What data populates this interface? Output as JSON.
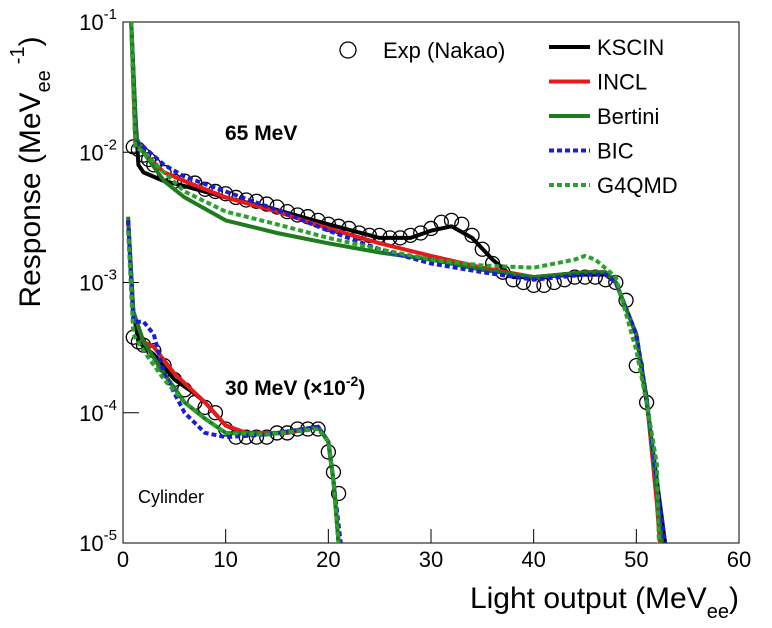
{
  "chart_data": {
    "type": "line",
    "log_y": true,
    "xlim": [
      0,
      60
    ],
    "xticks": [
      0,
      10,
      20,
      30,
      40,
      50,
      60
    ],
    "ylim": [
      1e-05,
      0.1
    ],
    "yticks": [
      {
        "value": 1e-05,
        "label": "10",
        "exponent": "-5"
      },
      {
        "value": 0.0001,
        "label": "10",
        "exponent": "-4"
      },
      {
        "value": 0.001,
        "label": "10",
        "exponent": "-3"
      },
      {
        "value": 0.01,
        "label": "10",
        "exponent": "-2"
      },
      {
        "value": 0.1,
        "label": "10",
        "exponent": "-1"
      }
    ],
    "x_label": {
      "text": "Light output (MeV",
      "sub": "ee",
      "end": ")"
    },
    "y_label": {
      "text": "Response (MeV",
      "sub": "ee",
      "sup": "-1",
      "end": ")"
    },
    "legend_position": "top-right",
    "annotation": "Cylinder",
    "styles": [
      {
        "name": "Exp (Nakao)",
        "marker": "circle",
        "color": "#000000"
      },
      {
        "name": "KSCIN",
        "color": "#000000",
        "dash": "solid"
      },
      {
        "name": "INCL",
        "color": "#e8191b",
        "dash": "solid"
      },
      {
        "name": "Bertini",
        "color": "#1e7b1e",
        "dash": "solid"
      },
      {
        "name": "BIC",
        "color": "#1c1cd8",
        "dash": "dotted"
      },
      {
        "name": "G4QMD",
        "color": "#2ca02c",
        "dash": "dotted"
      }
    ],
    "groups": [
      {
        "annotation": {
          "text": "65 MeV"
        },
        "series": [
          {
            "x": [
              1,
              1.5,
              2,
              2.5,
              3,
              4,
              5,
              6,
              7,
              8,
              9,
              10,
              11,
              12,
              13,
              14,
              15,
              16,
              17,
              18,
              19,
              20,
              21,
              22,
              23,
              24,
              25,
              26,
              27,
              28,
              29,
              30,
              31,
              32,
              33,
              34,
              35,
              36,
              37,
              38,
              39,
              40,
              41,
              42,
              43,
              44,
              45,
              46,
              47,
              48,
              49,
              50,
              51
            ],
            "values": [
              0.011,
              0.0105,
              0.0095,
              0.0088,
              0.008,
              0.007,
              0.006,
              0.006,
              0.0058,
              0.0052,
              0.005,
              0.0048,
              0.0045,
              0.0043,
              0.0042,
              0.004,
              0.0038,
              0.0035,
              0.0033,
              0.0032,
              0.003,
              0.0028,
              0.0027,
              0.0026,
              0.0024,
              0.0023,
              0.0023,
              0.0022,
              0.0022,
              0.0023,
              0.0024,
              0.0026,
              0.0029,
              0.003,
              0.0028,
              0.0023,
              0.0018,
              0.0014,
              0.0012,
              0.00105,
              0.001,
              0.00095,
              0.00095,
              0.001,
              0.00105,
              0.0011,
              0.0011,
              0.0011,
              0.00105,
              0.001,
              0.00073,
              0.00023,
              0.00012
            ]
          },
          {
            "x": [
              0.8,
              1.2,
              1.5,
              2,
              4,
              6,
              10,
              15,
              20,
              25,
              28,
              30,
              32,
              34,
              36,
              38,
              40,
              44,
              47,
              48,
              50,
              51,
              52,
              52.8
            ],
            "values": [
              0.1,
              0.02,
              0.008,
              0.007,
              0.006,
              0.0055,
              0.0045,
              0.0036,
              0.0028,
              0.0022,
              0.0022,
              0.0025,
              0.0027,
              0.0022,
              0.0015,
              0.0011,
              0.0011,
              0.00115,
              0.00115,
              0.001,
              0.0004,
              0.00012,
              3e-05,
              1e-05
            ]
          },
          {
            "x": [
              0.8,
              1.2,
              2,
              4,
              6,
              10,
              15,
              20,
              25,
              30,
              35,
              40,
              45,
              47,
              48,
              50,
              51,
              52,
              52.3
            ],
            "values": [
              0.1,
              0.012,
              0.01,
              0.007,
              0.006,
              0.0045,
              0.0035,
              0.0026,
              0.002,
              0.0016,
              0.0013,
              0.0011,
              0.0012,
              0.0012,
              0.001,
              0.0004,
              0.00013,
              2e-05,
              1e-05
            ]
          },
          {
            "x": [
              0.8,
              1.3,
              2,
              4,
              6,
              10,
              15,
              20,
              25,
              30,
              35,
              40,
              45,
              47,
              48,
              50,
              51,
              52,
              52.5
            ],
            "values": [
              0.1,
              0.013,
              0.01,
              0.006,
              0.0045,
              0.003,
              0.0024,
              0.002,
              0.0017,
              0.0015,
              0.00125,
              0.0011,
              0.0012,
              0.0012,
              0.001,
              0.0004,
              0.00013,
              2.5e-05,
              1e-05
            ]
          },
          {
            "x": [
              0.8,
              1.2,
              2,
              4,
              6,
              10,
              15,
              20,
              25,
              30,
              35,
              40,
              45,
              47,
              48,
              50,
              51,
              52,
              52.8
            ],
            "values": [
              0.1,
              0.012,
              0.011,
              0.008,
              0.0065,
              0.005,
              0.0036,
              0.0025,
              0.0018,
              0.0014,
              0.0012,
              0.00105,
              0.00115,
              0.00115,
              0.001,
              0.0004,
              0.00013,
              3e-05,
              1e-05
            ]
          },
          {
            "x": [
              0.8,
              1.2,
              2,
              4,
              6,
              10,
              15,
              20,
              25,
              30,
              35,
              40,
              44,
              45,
              46,
              48,
              50,
              51,
              52,
              52.2
            ],
            "values": [
              0.1,
              0.011,
              0.01,
              0.007,
              0.005,
              0.0035,
              0.0028,
              0.0022,
              0.0018,
              0.0015,
              0.00135,
              0.0013,
              0.0015,
              0.0016,
              0.0015,
              0.0011,
              0.0003,
              0.00012,
              4e-05,
              1e-05
            ]
          }
        ]
      },
      {
        "annotation": {
          "text": "30 MeV (×10",
          "sup": "-2",
          "end": ")"
        },
        "series": [
          {
            "x": [
              1,
              1.5,
              2,
              3,
              4,
              5,
              6,
              7,
              8,
              9,
              10,
              11,
              12,
              13,
              14,
              15,
              16,
              17,
              18,
              19,
              20,
              20.5,
              21
            ],
            "values": [
              0.00038,
              0.00035,
              0.00033,
              0.0003,
              0.00023,
              0.00018,
              0.00015,
              0.00012,
              0.00011,
              0.0001,
              7.5e-05,
              6.5e-05,
              6.5e-05,
              6.5e-05,
              6.5e-05,
              7e-05,
              7e-05,
              7.5e-05,
              7.5e-05,
              7.5e-05,
              5e-05,
              3.5e-05,
              2.4e-05
            ]
          },
          {
            "x": [
              0.5,
              1,
              1.5,
              3,
              5,
              7,
              8,
              10,
              12,
              16,
              19,
              20,
              20.5,
              21
            ],
            "values": [
              0.003,
              0.0006,
              0.00035,
              0.00028,
              0.00018,
              0.00014,
              0.00012,
              8e-05,
              6.8e-05,
              7e-05,
              7.8e-05,
              6e-05,
              3e-05,
              1e-05
            ]
          },
          {
            "x": [
              0.5,
              1,
              2,
              3,
              5,
              8,
              10,
              12,
              16,
              19,
              20,
              20.5,
              21
            ],
            "values": [
              0.003,
              0.0006,
              0.00035,
              0.00032,
              0.0002,
              0.00012,
              8e-05,
              7e-05,
              7e-05,
              7.8e-05,
              6e-05,
              3e-05,
              1e-05
            ]
          },
          {
            "x": [
              0.5,
              1,
              2,
              4,
              6,
              8,
              10,
              14,
              19,
              20,
              20.5,
              21
            ],
            "values": [
              0.0032,
              0.0006,
              0.00035,
              0.0002,
              0.00012,
              9e-05,
              7e-05,
              6.8e-05,
              7.8e-05,
              6e-05,
              3e-05,
              1e-05
            ]
          },
          {
            "x": [
              0.5,
              1,
              2,
              3,
              4,
              6,
              8,
              10,
              14,
              19,
              20,
              20.5,
              21.2
            ],
            "values": [
              0.003,
              0.0005,
              0.0005,
              0.0004,
              0.0002,
              0.0001,
              7e-05,
              6.5e-05,
              6.8e-05,
              7.8e-05,
              6e-05,
              3e-05,
              1e-05
            ]
          },
          {
            "x": [
              0.5,
              1,
              2,
              4,
              6,
              8,
              10,
              14,
              19,
              20,
              20.5,
              21
            ],
            "values": [
              0.0025,
              0.0004,
              0.0003,
              0.00018,
              0.00012,
              9e-05,
              7e-05,
              6.8e-05,
              7.5e-05,
              6e-05,
              3e-05,
              1e-05
            ]
          }
        ]
      }
    ]
  }
}
